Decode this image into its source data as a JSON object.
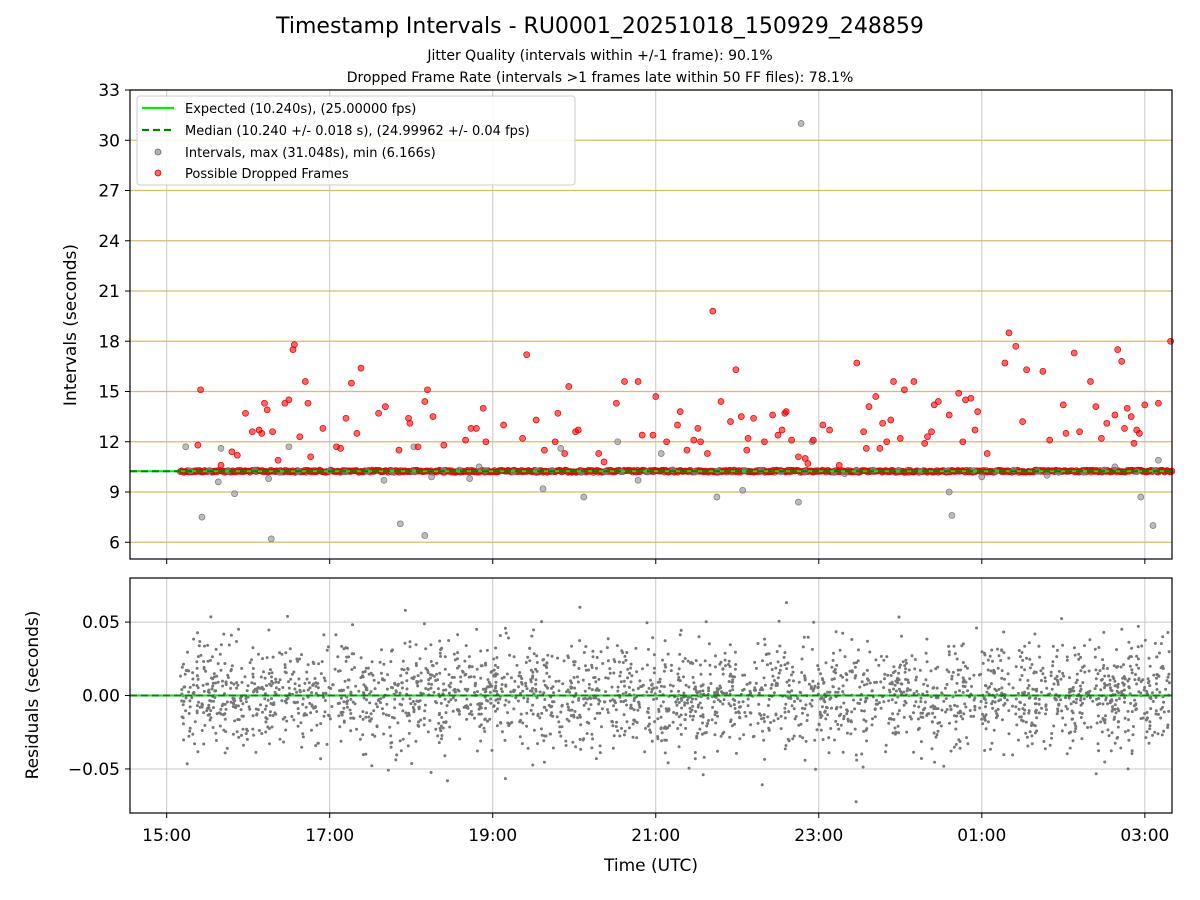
{
  "chart_data": [
    {
      "type": "scatter",
      "title": "Timestamp Intervals - RU0001_20251018_150929_248859",
      "subtitle_lines": [
        "Jitter Quality (intervals within +/-1 frame): 90.1%",
        "Dropped Frame Rate (intervals >1 frames late within 50 FF files): 78.1%"
      ],
      "ylabel": "Intervals (seconds)",
      "ylim": [
        5,
        33
      ],
      "xlim": [
        "14:33",
        "03:20"
      ],
      "yticks": [
        "6",
        "9",
        "12",
        "15",
        "18",
        "21",
        "24",
        "27",
        "30",
        "33"
      ],
      "ytick_values": [
        6,
        9,
        12,
        15,
        18,
        21,
        24,
        27,
        30,
        33
      ],
      "grid": "both",
      "horizontal_grid_color": "#d4bc72",
      "legend_position": "upper left",
      "legend": [
        {
          "label": "Expected (10.240s), (25.00000 fps)",
          "style": "line",
          "color": "#00ee00"
        },
        {
          "label": "Median (10.240 +/- 0.018 s), (24.99962 +/- 0.04 fps)",
          "style": "dashed",
          "color": "#008000"
        },
        {
          "label": "Intervals, max (31.048s), min (6.166s)",
          "style": "marker",
          "color": "#808080"
        },
        {
          "label": "Possible Dropped Frames",
          "style": "marker",
          "color": "#ff0000"
        }
      ],
      "expected_line": 10.24,
      "median_line": 10.24,
      "baseline_cluster": {
        "y": 10.24,
        "x_range": [
          "15:10",
          "03:20"
        ],
        "color": "#ff0000"
      },
      "series": [
        {
          "name": "Possible Dropped Frames",
          "color": "#ff0000",
          "points": [
            [
              "15:25",
              15.1
            ],
            [
              "15:23",
              11.8
            ],
            [
              "15:40",
              10.6
            ],
            [
              "15:48",
              11.4
            ],
            [
              "15:52",
              11.2
            ],
            [
              "15:58",
              13.7
            ],
            [
              "16:03",
              12.6
            ],
            [
              "16:08",
              12.7
            ],
            [
              "16:10",
              12.5
            ],
            [
              "16:12",
              14.3
            ],
            [
              "16:14",
              13.9
            ],
            [
              "16:18",
              12.6
            ],
            [
              "16:22",
              10.9
            ],
            [
              "16:27",
              14.3
            ],
            [
              "16:30",
              14.5
            ],
            [
              "16:33",
              17.5
            ],
            [
              "16:34",
              17.8
            ],
            [
              "16:38",
              12.3
            ],
            [
              "16:42",
              15.6
            ],
            [
              "16:44",
              14.3
            ],
            [
              "16:46",
              11.1
            ],
            [
              "16:55",
              12.8
            ],
            [
              "17:05",
              11.7
            ],
            [
              "17:08",
              11.6
            ],
            [
              "17:12",
              13.4
            ],
            [
              "17:16",
              15.5
            ],
            [
              "17:20",
              12.5
            ],
            [
              "17:23",
              16.4
            ],
            [
              "17:36",
              13.7
            ],
            [
              "17:41",
              14.1
            ],
            [
              "17:51",
              11.5
            ],
            [
              "17:58",
              13.4
            ],
            [
              "17:59",
              13.1
            ],
            [
              "18:05",
              11.7
            ],
            [
              "18:10",
              14.4
            ],
            [
              "18:12",
              15.1
            ],
            [
              "18:16",
              13.5
            ],
            [
              "18:24",
              11.8
            ],
            [
              "18:40",
              12.1
            ],
            [
              "18:44",
              12.8
            ],
            [
              "18:48",
              12.8
            ],
            [
              "18:53",
              14.0
            ],
            [
              "18:55",
              12.0
            ],
            [
              "19:08",
              13.0
            ],
            [
              "19:22",
              12.2
            ],
            [
              "19:25",
              17.2
            ],
            [
              "19:32",
              13.3
            ],
            [
              "19:38",
              11.5
            ],
            [
              "19:46",
              12.0
            ],
            [
              "19:48",
              13.7
            ],
            [
              "19:53",
              11.3
            ],
            [
              "19:56",
              15.3
            ],
            [
              "20:01",
              12.6
            ],
            [
              "20:03",
              12.7
            ],
            [
              "20:18",
              11.3
            ],
            [
              "20:22",
              10.8
            ],
            [
              "20:31",
              14.3
            ],
            [
              "20:37",
              15.6
            ],
            [
              "20:47",
              15.6
            ],
            [
              "20:50",
              12.4
            ],
            [
              "20:58",
              12.4
            ],
            [
              "21:00",
              14.7
            ],
            [
              "21:08",
              12.0
            ],
            [
              "21:16",
              13.0
            ],
            [
              "21:18",
              13.8
            ],
            [
              "21:23",
              11.5
            ],
            [
              "21:28",
              12.1
            ],
            [
              "21:31",
              12.8
            ],
            [
              "21:33",
              12.0
            ],
            [
              "21:38",
              11.3
            ],
            [
              "21:42",
              19.8
            ],
            [
              "21:48",
              14.4
            ],
            [
              "21:55",
              13.2
            ],
            [
              "21:59",
              16.3
            ],
            [
              "22:03",
              13.5
            ],
            [
              "22:07",
              11.5
            ],
            [
              "22:08",
              12.2
            ],
            [
              "22:12",
              13.4
            ],
            [
              "22:20",
              12.0
            ],
            [
              "22:26",
              13.6
            ],
            [
              "22:30",
              12.4
            ],
            [
              "22:33",
              12.7
            ],
            [
              "22:35",
              13.7
            ],
            [
              "22:36",
              13.8
            ],
            [
              "22:40",
              12.1
            ],
            [
              "22:45",
              11.1
            ],
            [
              "22:50",
              11.0
            ],
            [
              "22:52",
              10.7
            ],
            [
              "22:56",
              12.1
            ],
            [
              "23:03",
              13.0
            ],
            [
              "23:08",
              12.7
            ],
            [
              "23:15",
              10.6
            ],
            [
              "23:28",
              16.7
            ],
            [
              "23:33",
              12.6
            ],
            [
              "23:35",
              11.6
            ],
            [
              "23:37",
              14.1
            ],
            [
              "23:42",
              14.7
            ],
            [
              "23:45",
              11.6
            ],
            [
              "23:47",
              13.1
            ],
            [
              "23:50",
              12.0
            ],
            [
              "23:53",
              13.3
            ],
            [
              "23:55",
              15.6
            ],
            [
              "24:00",
              12.2
            ],
            [
              "24:03",
              15.1
            ],
            [
              "24:10",
              15.6
            ],
            [
              "24:18",
              11.9
            ],
            [
              "24:20",
              12.3
            ],
            [
              "24:23",
              12.6
            ],
            [
              "24:25",
              14.2
            ],
            [
              "24:28",
              14.4
            ],
            [
              "24:36",
              13.6
            ],
            [
              "24:43",
              14.9
            ],
            [
              "24:46",
              12.0
            ],
            [
              "24:48",
              14.5
            ],
            [
              "24:52",
              14.6
            ],
            [
              "24:55",
              12.7
            ],
            [
              "24:57",
              13.8
            ],
            [
              "25:04",
              11.3
            ],
            [
              "25:17",
              16.7
            ],
            [
              "25:20",
              18.5
            ],
            [
              "25:25",
              17.7
            ],
            [
              "25:30",
              13.2
            ],
            [
              "25:33",
              16.3
            ],
            [
              "25:45",
              16.2
            ],
            [
              "25:50",
              12.1
            ],
            [
              "26:00",
              14.2
            ],
            [
              "26:02",
              12.5
            ],
            [
              "26:08",
              17.3
            ],
            [
              "26:12",
              12.6
            ],
            [
              "26:20",
              15.6
            ],
            [
              "26:24",
              14.1
            ],
            [
              "26:28",
              12.2
            ],
            [
              "26:32",
              13.1
            ],
            [
              "26:38",
              13.6
            ],
            [
              "26:40",
              17.5
            ],
            [
              "26:43",
              16.8
            ],
            [
              "26:45",
              12.8
            ],
            [
              "26:47",
              14.0
            ],
            [
              "26:50",
              13.5
            ],
            [
              "26:52",
              11.9
            ],
            [
              "26:54",
              12.7
            ],
            [
              "26:56",
              12.5
            ],
            [
              "27:00",
              14.2
            ],
            [
              "27:10",
              14.3
            ],
            [
              "27:19",
              18.0
            ]
          ]
        },
        {
          "name": "Intervals, max (31.048s), min (6.166s)",
          "color": "#808080",
          "points": [
            [
              "15:14",
              11.7
            ],
            [
              "15:26",
              7.5
            ],
            [
              "15:38",
              9.6
            ],
            [
              "15:40",
              11.6
            ],
            [
              "15:50",
              8.9
            ],
            [
              "16:15",
              9.8
            ],
            [
              "16:17",
              6.2
            ],
            [
              "16:30",
              11.7
            ],
            [
              "17:40",
              9.7
            ],
            [
              "17:52",
              7.1
            ],
            [
              "18:02",
              11.7
            ],
            [
              "18:10",
              6.4
            ],
            [
              "18:15",
              9.9
            ],
            [
              "18:43",
              9.8
            ],
            [
              "18:50",
              10.5
            ],
            [
              "19:37",
              9.2
            ],
            [
              "19:50",
              11.6
            ],
            [
              "20:07",
              8.7
            ],
            [
              "20:32",
              12.0
            ],
            [
              "20:47",
              9.7
            ],
            [
              "21:04",
              11.3
            ],
            [
              "21:45",
              8.7
            ],
            [
              "22:04",
              9.1
            ],
            [
              "22:45",
              8.4
            ],
            [
              "22:55",
              12.0
            ],
            [
              "23:19",
              10.1
            ],
            [
              "24:36",
              9.0
            ],
            [
              "24:38",
              7.6
            ],
            [
              "25:00",
              9.9
            ],
            [
              "25:48",
              10.0
            ],
            [
              "26:38",
              10.5
            ],
            [
              "26:57",
              8.7
            ],
            [
              "27:06",
              7.0
            ],
            [
              "27:10",
              10.9
            ],
            [
              "22:47",
              31.0
            ]
          ]
        }
      ]
    },
    {
      "type": "scatter",
      "xlabel": "Time (UTC)",
      "ylabel": "Residuals (seconds)",
      "ylim": [
        -0.08,
        0.08
      ],
      "yticks": [
        "−0.05",
        "0.00",
        "0.05"
      ],
      "ytick_values": [
        -0.05,
        0.0,
        0.05
      ],
      "xticks": [
        "15:00",
        "17:00",
        "19:00",
        "21:00",
        "23:00",
        "01:00",
        "03:00"
      ],
      "grid": "both",
      "series": [
        {
          "name": "Residuals",
          "color": "#777777",
          "count": 2600,
          "x_range": [
            "15:10",
            "03:20"
          ],
          "std": 0.018
        }
      ],
      "zero_line": 0.0
    }
  ]
}
